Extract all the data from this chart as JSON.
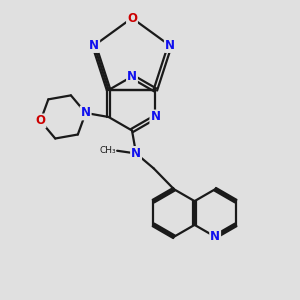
{
  "bg_color": "#e0e0e0",
  "bond_color": "#1a1a1a",
  "N_color": "#1010ee",
  "O_color": "#cc0000",
  "lw": 1.6,
  "fs": 8.5,
  "xlim": [
    0,
    10
  ],
  "ylim": [
    0,
    10
  ]
}
